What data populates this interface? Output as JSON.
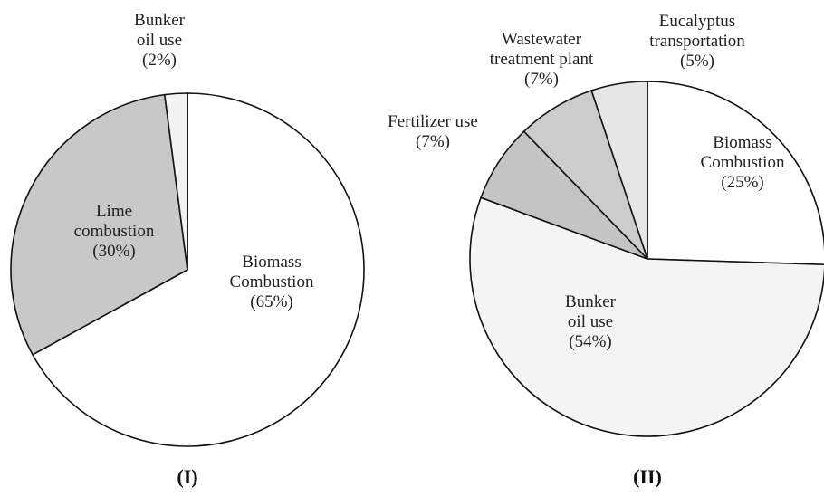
{
  "chart_data": [
    {
      "type": "pie",
      "title": "(I)",
      "categories": [
        "Biomass Combustion",
        "Lime combustion",
        "Bunker oil use"
      ],
      "values": [
        65,
        30,
        2
      ],
      "value_labels": [
        "(65%)",
        "(30%)",
        "(2%)"
      ],
      "colors": [
        "#ffffff",
        "#c8c8c8",
        "#f2f2f2"
      ]
    },
    {
      "type": "pie",
      "title": "(II)",
      "categories": [
        "Biomass Combustion",
        "Bunker oil use",
        "Fertilizer use",
        "Wastewater treatment plant",
        "Eucalyptus transportation"
      ],
      "values": [
        25,
        54,
        7,
        7,
        5
      ],
      "value_labels": [
        "(25%)",
        "(54%)",
        "(7%)",
        "(7%)",
        "(5%)"
      ],
      "colors": [
        "#ffffff",
        "#f4f4f4",
        "#c4c4c4",
        "#cccccc",
        "#e6e6e6"
      ]
    }
  ]
}
